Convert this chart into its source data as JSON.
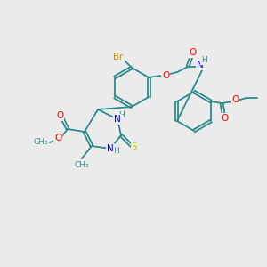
{
  "bg_color": "#ebebeb",
  "bond_color": "#2e8b8b",
  "atom_colors": {
    "O": "#ff0000",
    "N": "#0000ff",
    "S": "#cccc00",
    "Br": "#cc8800",
    "C": "#2e8b8b",
    "H": "#2e8b8b"
  },
  "figsize": [
    3.0,
    3.0
  ],
  "dpi": 100
}
